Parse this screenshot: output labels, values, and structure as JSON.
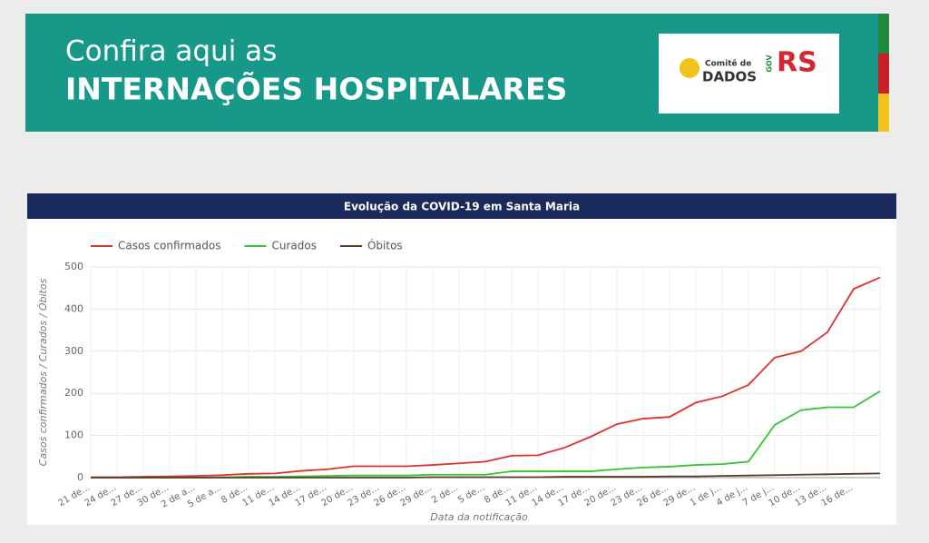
{
  "banner": {
    "line1": "Confira aqui as",
    "line2": "INTERNAÇÕES HOSPITALARES",
    "logo_committee": "Comitê de",
    "logo_dados": "DADOS",
    "logo_gov": "GOV",
    "logo_rs": "RS"
  },
  "chart_data": {
    "type": "line",
    "title": "Evolução da COVID-19 em Santa Maria",
    "x_label": "Data da notificação",
    "y_label": "Casos confirmados / Curados / Óbitos",
    "categories": [
      "21 de...",
      "24 de...",
      "27 de...",
      "30 de...",
      "2 de a...",
      "5 de a...",
      "8 de...",
      "11 de...",
      "14 de...",
      "17 de...",
      "20 de...",
      "23 de...",
      "26 de...",
      "29 de...",
      "2 de...",
      "5 de...",
      "8 de...",
      "11 de...",
      "14 de...",
      "17 de...",
      "20 de...",
      "23 de...",
      "26 de...",
      "29 de...",
      "1 de j...",
      "4 de j...",
      "7 de j...",
      "10 de...",
      "13 de...",
      "16 de...",
      null
    ],
    "series": [
      {
        "name": "Casos confirmados",
        "color": "#e0302a",
        "values": [
          1,
          1,
          2,
          3,
          4,
          6,
          9,
          10,
          16,
          20,
          27,
          27,
          27,
          30,
          34,
          38,
          52,
          53,
          71,
          97,
          127,
          140,
          144,
          178,
          193,
          220,
          285,
          300,
          345,
          448,
          475
        ]
      },
      {
        "name": "Curados",
        "color": "#35c435",
        "values": [
          0,
          0,
          0,
          0,
          0,
          1,
          2,
          2,
          3,
          4,
          5,
          5,
          5,
          7,
          7,
          7,
          15,
          15,
          15,
          15,
          20,
          24,
          26,
          30,
          32,
          38,
          125,
          160,
          167,
          167,
          205
        ]
      },
      {
        "name": "Óbitos",
        "color": "#5a3a2a",
        "values": [
          0,
          0,
          0,
          0,
          0,
          0,
          0,
          0,
          0,
          0,
          0,
          0,
          0,
          1,
          1,
          1,
          1,
          1,
          2,
          2,
          2,
          2,
          3,
          3,
          4,
          5,
          6,
          7,
          8,
          9,
          10
        ]
      }
    ],
    "ylim": [
      0,
      500
    ],
    "yticks": [
      0,
      100,
      200,
      300,
      400,
      500
    ],
    "grid": true,
    "legend": "top"
  }
}
